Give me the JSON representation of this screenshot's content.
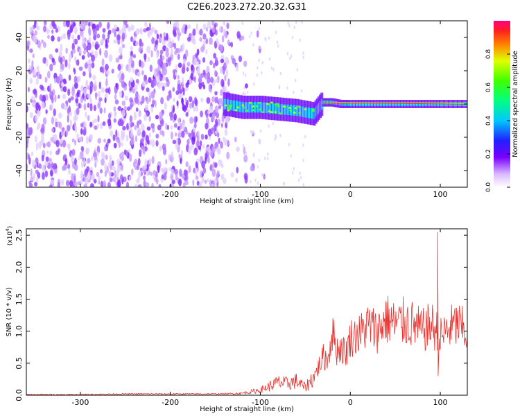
{
  "title": "C2E6.2023.272.20.32.G31",
  "chart_data": [
    {
      "type": "heatmap",
      "name": "spectrogram",
      "xlabel": "Height of straight line (km)",
      "ylabel": "Frequency (Hz)",
      "xlim": [
        -360,
        130
      ],
      "ylim": [
        -50,
        50
      ],
      "xticks": [
        -300,
        -200,
        -100,
        0,
        100
      ],
      "yticks": [
        -40,
        -20,
        0,
        20,
        40
      ],
      "colorbar": {
        "label": "Normalized spectral amplitude",
        "ticks": [
          "0.0",
          "0.2",
          "0.4",
          "0.6",
          "0.8"
        ],
        "range": [
          0,
          1
        ]
      },
      "trace": {
        "x": [
          -140,
          -120,
          -100,
          -80,
          -60,
          -40,
          -30,
          -20,
          -10,
          0,
          20,
          40,
          60,
          80,
          100,
          130
        ],
        "y": [
          0,
          -2,
          -2,
          -3,
          -4,
          -6,
          1,
          1,
          0,
          0,
          0,
          0,
          0,
          0,
          0,
          0
        ]
      }
    },
    {
      "type": "line",
      "name": "snr",
      "xlabel": "Height of straight line (km)",
      "ylabel": "SNR (10 * v/v)",
      "yscale_label": "(x10",
      "yscale_exp": "4",
      "xlim": [
        -360,
        130
      ],
      "ylim": [
        0,
        2.6
      ],
      "xticks": [
        -300,
        -200,
        -100,
        0,
        100
      ],
      "yticks": [
        "0.0",
        "0.5",
        "1.0",
        "1.5",
        "2.0",
        "2.5"
      ],
      "color": "#e8322e",
      "series": [
        {
          "x": [
            -360,
            -300,
            -250,
            -200,
            -150,
            -120,
            -100,
            -90,
            -80,
            -70,
            -60,
            -50,
            -40,
            -30,
            -25,
            -20,
            -15,
            -10,
            -5,
            0,
            10,
            20,
            30,
            40,
            50,
            60,
            70,
            80,
            90,
            95,
            97,
            100,
            110,
            120,
            130
          ],
          "values": [
            0.01,
            0.01,
            0.02,
            0.02,
            0.02,
            0.03,
            0.08,
            0.14,
            0.2,
            0.18,
            0.22,
            0.12,
            0.3,
            0.6,
            0.55,
            1.0,
            0.7,
            0.75,
            0.65,
            0.9,
            0.95,
            1.1,
            1.0,
            1.2,
            1.1,
            1.15,
            1.1,
            1.0,
            1.1,
            1.0,
            2.55,
            0.9,
            1.05,
            1.1,
            0.95
          ]
        }
      ]
    }
  ]
}
